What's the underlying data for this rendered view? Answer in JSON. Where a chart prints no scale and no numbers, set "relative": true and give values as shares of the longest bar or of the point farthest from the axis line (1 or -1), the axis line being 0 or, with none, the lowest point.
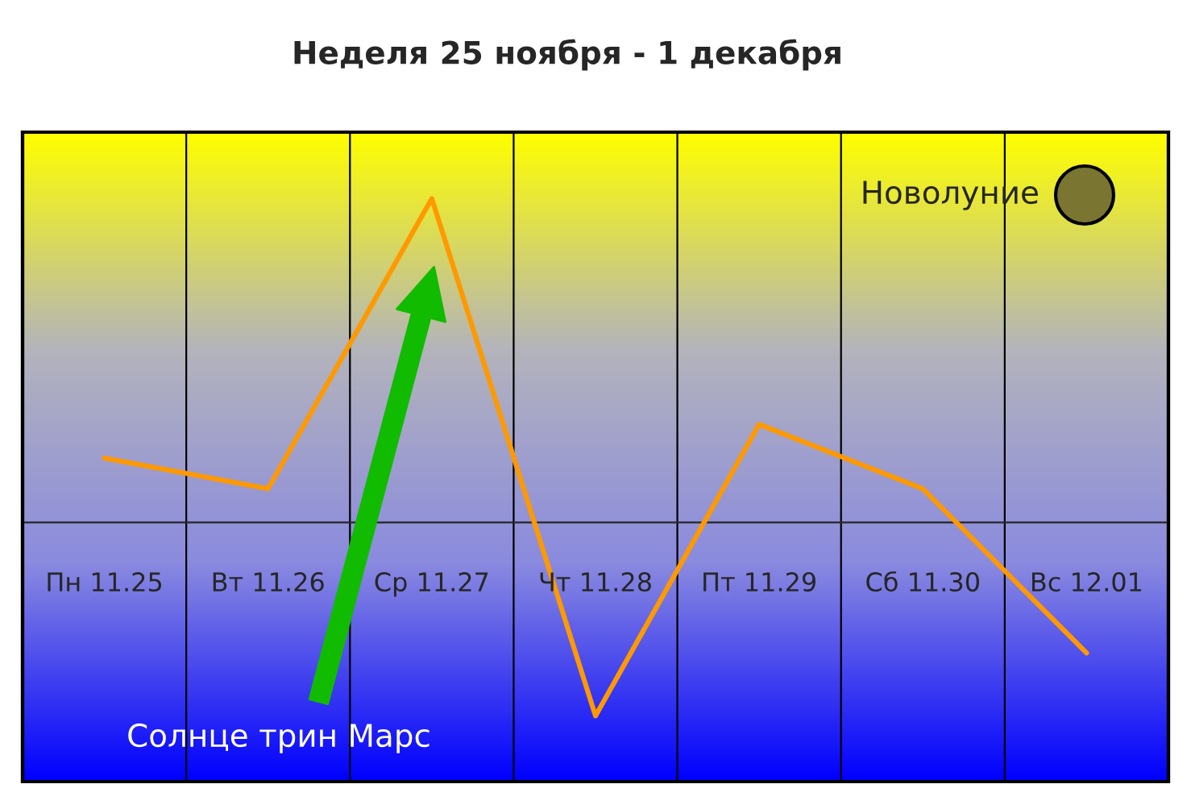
{
  "chart_data": {
    "type": "line",
    "title": "Неделя 25 ноября - 1 декабря",
    "relative": true,
    "categories": [
      "Пн 11.25",
      "Вт 11.26",
      "Ср 11.27",
      "Чт 11.28",
      "Пт 11.29",
      "Сб 11.30",
      "Вс 12.01"
    ],
    "series": [
      {
        "color": "#ff9900",
        "values": [
          0.199,
          0.104,
          1,
          -0.597,
          0.303,
          0.104,
          -0.403
        ]
      }
    ],
    "annotations": [
      "Новолуние",
      "Солнце трин Марс"
    ],
    "grid": "x",
    "marker": "none",
    "line_style": "solid"
  }
}
